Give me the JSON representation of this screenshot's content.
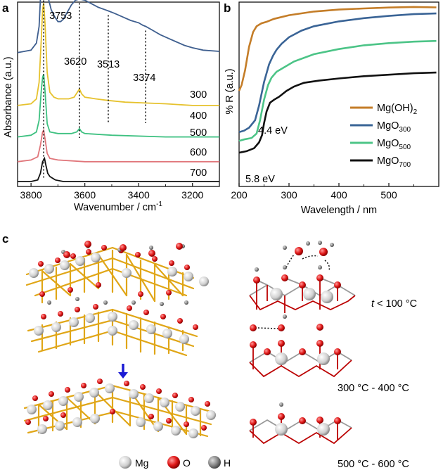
{
  "panel_labels": {
    "a": "a",
    "b": "b",
    "c": "c"
  },
  "chart_data": [
    {
      "panel": "a",
      "type": "line",
      "xlabel": "Wavenumber / cm",
      "xlabel_sup": "-1",
      "ylabel": "Absorbance (a.u.)",
      "xlim": [
        3850,
        3100
      ],
      "xticks": [
        3800,
        3600,
        3400,
        3200
      ],
      "yticks": "none",
      "peak_labels": [
        {
          "x": 3753,
          "text": "3753"
        },
        {
          "x": 3620,
          "text": "3620"
        },
        {
          "x": 3513,
          "text": "3513"
        },
        {
          "x": 3374,
          "text": "3374"
        }
      ],
      "series": [
        {
          "name": "300",
          "color": "#3f5f8f",
          "offset": 1.0,
          "points": [
            [
              3850,
              0.0
            ],
            [
              3800,
              0.02
            ],
            [
              3780,
              0.08
            ],
            [
              3770,
              0.22
            ],
            [
              3762,
              0.6
            ],
            [
              3757,
              0.93
            ],
            [
              3753,
              1.0
            ],
            [
              3748,
              0.85
            ],
            [
              3742,
              0.6
            ],
            [
              3735,
              0.45
            ],
            [
              3725,
              0.36
            ],
            [
              3712,
              0.3
            ],
            [
              3700,
              0.26
            ],
            [
              3690,
              0.26
            ],
            [
              3680,
              0.28
            ],
            [
              3665,
              0.34
            ],
            [
              3650,
              0.4
            ],
            [
              3635,
              0.44
            ],
            [
              3620,
              0.45
            ],
            [
              3600,
              0.44
            ],
            [
              3575,
              0.41
            ],
            [
              3550,
              0.38
            ],
            [
              3525,
              0.36
            ],
            [
              3513,
              0.35
            ],
            [
              3490,
              0.33
            ],
            [
              3460,
              0.3
            ],
            [
              3430,
              0.27
            ],
            [
              3400,
              0.25
            ],
            [
              3385,
              0.23
            ],
            [
              3374,
              0.22
            ],
            [
              3350,
              0.19
            ],
            [
              3320,
              0.15
            ],
            [
              3290,
              0.12
            ],
            [
              3260,
              0.09
            ],
            [
              3230,
              0.06
            ],
            [
              3200,
              0.04
            ],
            [
              3160,
              0.02
            ],
            [
              3100,
              0.01
            ]
          ]
        },
        {
          "name": "400",
          "color": "#e6c22e",
          "offset": 0.68,
          "points": [
            [
              3850,
              0.0
            ],
            [
              3800,
              0.01
            ],
            [
              3780,
              0.04
            ],
            [
              3770,
              0.14
            ],
            [
              3762,
              0.4
            ],
            [
              3757,
              0.58
            ],
            [
              3753,
              0.62
            ],
            [
              3748,
              0.5
            ],
            [
              3740,
              0.2
            ],
            [
              3730,
              0.08
            ],
            [
              3715,
              0.05
            ],
            [
              3700,
              0.04
            ],
            [
              3660,
              0.04
            ],
            [
              3640,
              0.05
            ],
            [
              3628,
              0.08
            ],
            [
              3620,
              0.1
            ],
            [
              3612,
              0.07
            ],
            [
              3600,
              0.05
            ],
            [
              3560,
              0.04
            ],
            [
              3513,
              0.03
            ],
            [
              3450,
              0.02
            ],
            [
              3374,
              0.015
            ],
            [
              3300,
              0.01
            ],
            [
              3200,
              0.0
            ],
            [
              3100,
              0.0
            ]
          ]
        },
        {
          "name": "500",
          "color": "#3ec181",
          "offset": 0.49,
          "points": [
            [
              3850,
              0.0
            ],
            [
              3800,
              0.01
            ],
            [
              3780,
              0.03
            ],
            [
              3770,
              0.1
            ],
            [
              3762,
              0.28
            ],
            [
              3757,
              0.36
            ],
            [
              3753,
              0.38
            ],
            [
              3748,
              0.28
            ],
            [
              3740,
              0.08
            ],
            [
              3730,
              0.03
            ],
            [
              3700,
              0.02
            ],
            [
              3650,
              0.02
            ],
            [
              3630,
              0.03
            ],
            [
              3620,
              0.05
            ],
            [
              3612,
              0.03
            ],
            [
              3600,
              0.02
            ],
            [
              3500,
              0.01
            ],
            [
              3300,
              0.0
            ],
            [
              3100,
              0.0
            ]
          ]
        },
        {
          "name": "600",
          "color": "#e0757a",
          "offset": 0.34,
          "points": [
            [
              3850,
              0.0
            ],
            [
              3800,
              0.01
            ],
            [
              3775,
              0.03
            ],
            [
              3765,
              0.1
            ],
            [
              3757,
              0.18
            ],
            [
              3753,
              0.19
            ],
            [
              3748,
              0.14
            ],
            [
              3740,
              0.05
            ],
            [
              3730,
              0.02
            ],
            [
              3700,
              0.01
            ],
            [
              3600,
              0.0
            ],
            [
              3100,
              0.0
            ]
          ]
        },
        {
          "name": "700",
          "color": "#111111",
          "offset": 0.22,
          "points": [
            [
              3850,
              0.0
            ],
            [
              3800,
              0.0
            ],
            [
              3775,
              0.01
            ],
            [
              3765,
              0.05
            ],
            [
              3757,
              0.12
            ],
            [
              3750,
              0.14
            ],
            [
              3745,
              0.1
            ],
            [
              3738,
              0.05
            ],
            [
              3730,
              0.03
            ],
            [
              3710,
              0.01
            ],
            [
              3680,
              0.0
            ],
            [
              3100,
              0.0
            ]
          ]
        }
      ]
    },
    {
      "panel": "b",
      "type": "line",
      "xlabel": "Wavelength / nm",
      "ylabel": "% R (a.u.)",
      "xlim": [
        200,
        600
      ],
      "ylim": [
        0,
        100
      ],
      "xticks": [
        200,
        300,
        400,
        500
      ],
      "yticks": "none",
      "annotations": [
        {
          "text": "4.4 eV",
          "x": 282
        },
        {
          "text": "5.8 eV",
          "x": 214
        }
      ],
      "legend_position": "bottom-right",
      "series": [
        {
          "name": "Mg(OH)",
          "sub": "2",
          "color": "#c47d28",
          "points": [
            [
              200,
              42
            ],
            [
              205,
              46
            ],
            [
              212,
              56
            ],
            [
              220,
              72
            ],
            [
              228,
              82
            ],
            [
              235,
              86
            ],
            [
              245,
              88
            ],
            [
              255,
              89
            ],
            [
              270,
              91
            ],
            [
              300,
              93.5
            ],
            [
              350,
              96
            ],
            [
              400,
              97.3
            ],
            [
              450,
              98.1
            ],
            [
              500,
              98.7
            ],
            [
              550,
              99.1
            ],
            [
              595,
              98.8
            ]
          ]
        },
        {
          "name": "MgO",
          "sub": "300",
          "color": "#3a6496",
          "points": [
            [
              200,
              14
            ],
            [
              210,
              15
            ],
            [
              220,
              17
            ],
            [
              232,
              22
            ],
            [
              240,
              32
            ],
            [
              250,
              48
            ],
            [
              260,
              60
            ],
            [
              268,
              66
            ],
            [
              275,
              70
            ],
            [
              285,
              74
            ],
            [
              300,
              78.5
            ],
            [
              325,
              83
            ],
            [
              350,
              86
            ],
            [
              400,
              89.3
            ],
            [
              450,
              91.5
            ],
            [
              500,
              93
            ],
            [
              550,
              94.2
            ],
            [
              595,
              94.7
            ]
          ]
        },
        {
          "name": "MgO",
          "sub": "500",
          "color": "#4cc487",
          "points": [
            [
              200,
              8
            ],
            [
              210,
              9
            ],
            [
              225,
              10
            ],
            [
              235,
              13
            ],
            [
              242,
              22
            ],
            [
              250,
              36
            ],
            [
              258,
              46
            ],
            [
              265,
              51
            ],
            [
              275,
              55
            ],
            [
              290,
              58
            ],
            [
              310,
              62
            ],
            [
              350,
              67
            ],
            [
              400,
              70.5
            ],
            [
              450,
              73
            ],
            [
              500,
              74.5
            ],
            [
              550,
              75.5
            ],
            [
              595,
              76
            ]
          ]
        },
        {
          "name": "MgO",
          "sub": "700",
          "color": "#111111",
          "points": [
            [
              200,
              0
            ],
            [
              215,
              1
            ],
            [
              230,
              3
            ],
            [
              240,
              7
            ],
            [
              246,
              12
            ],
            [
              250,
              20
            ],
            [
              255,
              28
            ],
            [
              262,
              34
            ],
            [
              270,
              36
            ],
            [
              280,
              38
            ],
            [
              295,
              42
            ],
            [
              310,
              45
            ],
            [
              330,
              47.5
            ],
            [
              360,
              49
            ],
            [
              400,
              50.5
            ],
            [
              450,
              52
            ],
            [
              500,
              53
            ],
            [
              550,
              54
            ],
            [
              595,
              54.5
            ]
          ]
        }
      ]
    }
  ],
  "panel_c": {
    "conditions": [
      {
        "prefix": "t",
        "text": " < 100 °C"
      },
      {
        "prefix": "",
        "text": "300 °C - 400 °C"
      },
      {
        "prefix": "",
        "text": "500 °C - 600 °C"
      }
    ],
    "legend": [
      {
        "label": "Mg",
        "color": "#cfcfcf"
      },
      {
        "label": "O",
        "color": "#e01818"
      },
      {
        "label": "H",
        "color": "#8a8a8a"
      }
    ]
  }
}
